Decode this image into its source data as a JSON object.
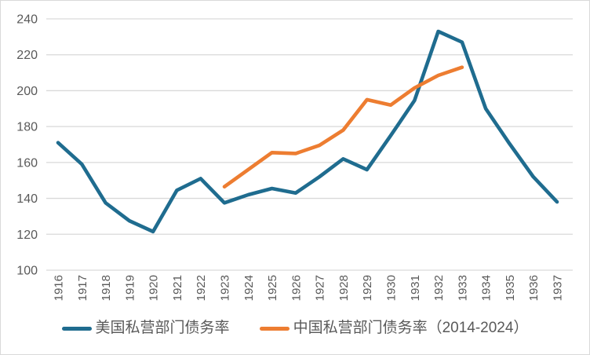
{
  "chart_data": {
    "type": "line",
    "title": "",
    "xlabel": "",
    "ylabel": "",
    "categories": [
      "1916",
      "1917",
      "1918",
      "1919",
      "1920",
      "1921",
      "1922",
      "1923",
      "1924",
      "1925",
      "1926",
      "1927",
      "1928",
      "1929",
      "1930",
      "1931",
      "1932",
      "1933",
      "1934",
      "1935",
      "1936",
      "1937"
    ],
    "y_ticks": [
      100,
      120,
      140,
      160,
      180,
      200,
      220,
      240
    ],
    "ylim": [
      100,
      240
    ],
    "grid": "horizontal-only",
    "legend_position": "bottom-center",
    "series": [
      {
        "name": "美国私营部门债务率",
        "color": "#1F6C8F",
        "start_index": 0,
        "x_range": "1916-1937",
        "values": [
          171,
          159,
          137.5,
          127.5,
          121.5,
          144.5,
          151,
          137.5,
          142,
          145.5,
          143,
          152,
          162,
          156,
          175,
          194.5,
          233,
          227,
          190,
          170.5,
          152,
          138
        ]
      },
      {
        "name": "中国私营部门债务率（2014-2024）",
        "color": "#ED7D31",
        "start_index": 7,
        "x_range": "2014-2024 plotted over 1923-1933",
        "values": [
          146.5,
          156,
          165.5,
          165,
          169.5,
          178,
          195,
          192,
          201.5,
          208.5,
          213
        ]
      }
    ]
  },
  "colors": {
    "background": "#FFFFFF",
    "frame_border": "#D9D9D9",
    "gridline": "#D9D9D9",
    "axis_text": "#595959"
  }
}
